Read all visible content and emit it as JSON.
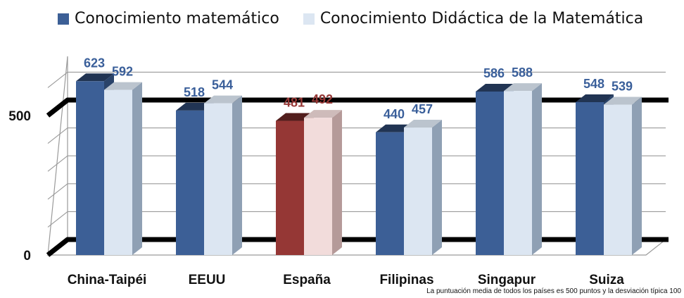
{
  "chart_data": {
    "type": "bar",
    "categories": [
      "China-Taipéi",
      "EEUU",
      "España",
      "Filipinas",
      "Singapur",
      "Suiza"
    ],
    "series": [
      {
        "name": "Conocimiento matemático",
        "values": [
          623,
          518,
          481,
          440,
          586,
          548
        ]
      },
      {
        "name": "Conocimiento Didáctica de la Matemática",
        "values": [
          592,
          544,
          492,
          457,
          588,
          539
        ]
      }
    ],
    "yticks": [
      0,
      500
    ],
    "ylim": [
      0,
      680
    ],
    "grid": true,
    "legend_position": "top",
    "highlight_category": "España"
  },
  "colors": {
    "series1": "#3C5F96",
    "series2": "#DCE6F2",
    "highlight1": "#953735",
    "highlight2": "#F2DCDB",
    "value_label": "#3A5F9A",
    "value_label_highlight": "#953735",
    "axis_thick": "#000000",
    "grid": "#9A9A9A"
  },
  "legend": {
    "series1_label": "Conocimiento matemático",
    "series2_label": "Conocimiento Didáctica de la Matemática"
  },
  "footnote": "La puntuación media de todos los países es 500 puntos y la desviación típica 100"
}
